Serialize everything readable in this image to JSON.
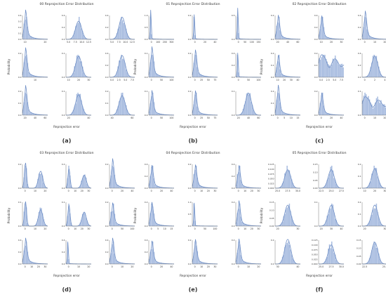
{
  "figure": {
    "accent_color": "#6f8fc6",
    "fill_color": "#a9bde0",
    "panels": [
      {
        "title": "00 Reprojection Error Distribution",
        "letter": "(a)",
        "ylabel": "Probability",
        "xlabel": "Reprojection error"
      },
      {
        "title": "01 Reprojection Error Distribution",
        "letter": "(b)",
        "ylabel": "Probability",
        "xlabel": "Reprojection error"
      },
      {
        "title": "02 Reprojection Error Distribution",
        "letter": "(c)",
        "ylabel": "Probability",
        "xlabel": "Reprojection error"
      },
      {
        "title": "03 Reprojection Error Distribution",
        "letter": "(d)",
        "ylabel": "Probability",
        "xlabel": "Reprojection error"
      },
      {
        "title": "04 Reprojection Error Distribution",
        "letter": "(e)",
        "ylabel": "Probability",
        "xlabel": "Reprojection error"
      },
      {
        "title": "05 Reprojection Error Distribution",
        "letter": "(f)",
        "ylabel": "Probability",
        "xlabel": "Reprojection error"
      }
    ]
  },
  "chart_data": [
    {
      "type": "histogram",
      "title": "00 Reprojection Error Distribution",
      "xlabel": "Reprojection error",
      "ylabel": "Probability",
      "grid": false,
      "subplots": [
        {
          "xticks": [
            "10",
            "20"
          ],
          "yticks": [
            "0.4",
            "0.3",
            "0.2",
            "0.1",
            "0.0"
          ],
          "shape": "skew"
        },
        {
          "xticks": [
            "5.0",
            "7.5",
            "10.0",
            "12.5"
          ],
          "yticks": [
            "0.4",
            "0.2",
            "0.0"
          ],
          "shape": "normal"
        },
        {
          "xticks": [
            "5.0",
            "7.5",
            "10.0",
            "12.5"
          ],
          "yticks": [
            "0.4",
            "0.2",
            "0.0"
          ],
          "shape": "normal"
        },
        {
          "xticks": [
            "10"
          ],
          "yticks": [
            "0.2",
            "0.0"
          ],
          "shape": "skew"
        },
        {
          "xticks": [
            "10",
            "20",
            "30"
          ],
          "yticks": [
            "0.1",
            "0.0"
          ],
          "shape": "normal"
        },
        {
          "xticks": [
            "0.0",
            "2.5",
            "5.0",
            "7.5"
          ],
          "yticks": [
            "0.4",
            "0.2",
            "0.0"
          ],
          "shape": "normal"
        },
        {
          "xticks": [
            "20",
            "40",
            "60"
          ],
          "yticks": [
            "0.2",
            "0.1",
            "0.0"
          ],
          "shape": "skew"
        },
        {
          "xticks": [
            "20",
            "40"
          ],
          "yticks": [
            "0.1",
            "0.0"
          ],
          "shape": "normal"
        },
        {
          "xticks": [
            "40",
            "60"
          ],
          "yticks": [
            "0.2",
            "0.1",
            "0.0"
          ],
          "shape": "normal"
        }
      ]
    },
    {
      "type": "histogram",
      "title": "01 Reprojection Error Distribution",
      "xlabel": "Reprojection error",
      "ylabel": "Probability",
      "grid": false,
      "subplots": [
        {
          "xticks": [
            "0",
            "100",
            "200",
            "300"
          ],
          "yticks": [
            "1.0",
            "0.5",
            "0.0"
          ],
          "shape": "spike"
        },
        {
          "xticks": [
            "0",
            "20",
            "40"
          ],
          "yticks": [
            "0.2",
            "0.0"
          ],
          "shape": "spike"
        },
        {
          "xticks": [
            "0",
            "50",
            "100",
            "150"
          ],
          "yticks": [
            "0.5",
            "0.0"
          ],
          "shape": "spike"
        },
        {
          "xticks": [
            "0",
            "50",
            "100"
          ],
          "yticks": [
            "0.1",
            "0.0"
          ],
          "shape": "skew"
        },
        {
          "xticks": [
            "0",
            "25",
            "50",
            "75"
          ],
          "yticks": [
            "0.2",
            "0.0"
          ],
          "shape": "skew"
        },
        {
          "xticks": [
            "0",
            "50",
            "100"
          ],
          "yticks": [
            "0.4",
            "0.2",
            "0.0"
          ],
          "shape": "spike"
        },
        {
          "xticks": [
            "0",
            "50",
            "100"
          ],
          "yticks": [
            "0.1",
            "0.0"
          ],
          "shape": "skew"
        },
        {
          "xticks": [
            "0",
            "25",
            "50",
            "75"
          ],
          "yticks": [
            "0.2",
            "0.0"
          ],
          "shape": "skew"
        },
        {
          "xticks": [
            "20",
            "40",
            "60"
          ],
          "yticks": [
            "0.1",
            "0.0"
          ],
          "shape": "normal"
        }
      ]
    },
    {
      "type": "histogram",
      "title": "02 Reprojection Error Distribution",
      "xlabel": "Reprojection error",
      "ylabel": "Probability",
      "grid": false,
      "subplots": [
        {
          "xticks": [
            "20",
            "40",
            "60"
          ],
          "yticks": [
            "0.2",
            "0.0"
          ],
          "shape": "skew"
        },
        {
          "xticks": [
            "10",
            "20",
            "30"
          ],
          "yticks": [
            "0.4",
            "0.2",
            "0.0"
          ],
          "shape": "skew"
        },
        {
          "xticks": [
            "0",
            "10",
            "20"
          ],
          "yticks": [
            "0.4",
            "0.2",
            "0.0"
          ],
          "shape": "skew"
        },
        {
          "xticks": [
            "10",
            "20",
            "30",
            "40"
          ],
          "yticks": [
            "0.2",
            "0.1",
            "0.0"
          ],
          "shape": "skew"
        },
        {
          "xticks": [
            "0.0",
            "2.5",
            "5.0",
            "7.5"
          ],
          "yticks": [
            "0.2",
            "0.1",
            "0.0"
          ],
          "shape": "multi"
        },
        {
          "xticks": [
            "0",
            "2",
            "4"
          ],
          "yticks": [
            "0.4",
            "0.2",
            "0.0"
          ],
          "shape": "normal"
        },
        {
          "xticks": [
            "0",
            "5",
            "10",
            "15"
          ],
          "yticks": [
            "0.2",
            "0.1",
            "0.0"
          ],
          "shape": "skew"
        },
        {
          "xticks": [
            "0",
            "20",
            "40"
          ],
          "yticks": [
            "0.2",
            "0.0"
          ],
          "shape": "skew"
        },
        {
          "xticks": [
            "0",
            "10",
            "20"
          ],
          "yticks": [
            "0.1",
            "0.0"
          ],
          "shape": "multi"
        }
      ]
    },
    {
      "type": "histogram",
      "title": "03 Reprojection Error Distribution",
      "xlabel": "Reprojection error",
      "ylabel": "Probability",
      "grid": false,
      "subplots": [
        {
          "xticks": [
            "0",
            "10",
            "20"
          ],
          "yticks": [
            "0.2",
            "0.0"
          ],
          "shape": "bimodal"
        },
        {
          "xticks": [
            "0",
            "10",
            "20",
            "30"
          ],
          "yticks": [
            "0.2",
            "0.0"
          ],
          "shape": "bimodal"
        },
        {
          "xticks": [
            "0",
            "20",
            "40"
          ],
          "yticks": [
            "0.2",
            "0.0"
          ],
          "shape": "skew"
        },
        {
          "xticks": [
            "0",
            "10",
            "20"
          ],
          "yticks": [
            "0.1",
            "0.0"
          ],
          "shape": "bimodal"
        },
        {
          "xticks": [
            "0",
            "10",
            "20",
            "30"
          ],
          "yticks": [
            "0.1",
            "0.0"
          ],
          "shape": "bimodal"
        },
        {
          "xticks": [
            "0",
            "50",
            "100"
          ],
          "yticks": [
            "0.2",
            "0.0"
          ],
          "shape": "skew"
        },
        {
          "xticks": [
            "0",
            "10",
            "20",
            "30"
          ],
          "yticks": [
            "0.4",
            "0.2",
            "0.0"
          ],
          "shape": "skew"
        },
        {
          "xticks": [
            "0",
            "10",
            "20"
          ],
          "yticks": [
            "0.4",
            "0.2",
            "0.0"
          ],
          "shape": "spike"
        },
        {
          "xticks": [
            "0",
            "10",
            "20"
          ],
          "yticks": [
            "0.4",
            "0.2",
            "0.0"
          ],
          "shape": "skew"
        }
      ]
    },
    {
      "type": "histogram",
      "title": "04 Reprojection Error Distribution",
      "xlabel": "Reprojection error",
      "ylabel": "Probability",
      "grid": false,
      "subplots": [
        {
          "xticks": [
            "0",
            "20",
            "40"
          ],
          "yticks": [
            "0.4",
            "0.2",
            "0.0"
          ],
          "shape": "skew"
        },
        {
          "xticks": [
            "0",
            "10",
            "20",
            "30"
          ],
          "yticks": [
            "0.2",
            "0.0"
          ],
          "shape": "skew"
        },
        {
          "xticks": [
            "0",
            "10",
            "20",
            "30"
          ],
          "yticks": [
            "0.4",
            "0.2",
            "0.0"
          ],
          "shape": "skew"
        },
        {
          "xticks": [
            "0",
            "5",
            "10",
            "15"
          ],
          "yticks": [
            "0.2",
            "0.0"
          ],
          "shape": "skew"
        },
        {
          "xticks": [
            "0",
            "50",
            "100"
          ],
          "yticks": [
            "1.0",
            "0.5",
            "0.0"
          ],
          "shape": "spike"
        },
        {
          "xticks": [
            "0",
            "10",
            "20",
            "30"
          ],
          "yticks": [
            "0.2",
            "0.0"
          ],
          "shape": "skew"
        },
        {
          "xticks": [
            "0",
            "20",
            "40"
          ],
          "yticks": [
            "0.4",
            "0.2",
            "0.0"
          ],
          "shape": "skew"
        },
        {
          "xticks": [
            "0",
            "10",
            "20",
            "30"
          ],
          "yticks": [
            "0.2",
            "0.0"
          ],
          "shape": "skew"
        },
        {
          "xticks": [
            "0",
            "10",
            "20"
          ],
          "yticks": [
            "0.2",
            "0.0"
          ],
          "shape": "skew"
        }
      ]
    },
    {
      "type": "histogram",
      "title": "05 Reprojection Error Distribution",
      "xlabel": "Reprojection error",
      "ylabel": "Probability",
      "grid": false,
      "subplots": [
        {
          "xticks": [
            "25.0",
            "27.5",
            "30.0"
          ],
          "yticks": [
            "0.125",
            "0.100",
            "0.075",
            "0.050",
            "0.025",
            "0.000"
          ],
          "shape": "normal"
        },
        {
          "xticks": [
            "22.5",
            "25.0",
            "27.5"
          ],
          "yticks": [
            "0.15",
            "0.10",
            "0.05",
            "0.00"
          ],
          "shape": "normal"
        },
        {
          "xticks": [
            "10",
            "20",
            "30"
          ],
          "yticks": [
            "0.2",
            "0.1",
            "0.0"
          ],
          "shape": "normal"
        },
        {
          "xticks": [
            "20",
            "30"
          ],
          "yticks": [
            "0.15",
            "0.10",
            "0.05",
            "0.00"
          ],
          "shape": "normal"
        },
        {
          "xticks": [
            "20",
            "30",
            "40"
          ],
          "yticks": [
            "0.1",
            "0.0"
          ],
          "shape": "normal"
        },
        {
          "xticks": [
            "20",
            "30"
          ],
          "yticks": [
            "0.2",
            "0.1",
            "0.0"
          ],
          "shape": "normal"
        },
        {
          "xticks": [
            "30",
            "40"
          ],
          "yticks": [
            "0.2",
            "0.0"
          ],
          "shape": "normal"
        },
        {
          "xticks": [
            "25.0",
            "27.5",
            "30.0"
          ],
          "yticks": [
            "0.125",
            "0.100",
            "0.075",
            "0.050",
            "0.025",
            "0.000"
          ],
          "shape": "normal"
        },
        {
          "xticks": [
            "22.5",
            "25.0"
          ],
          "yticks": [
            "0.15",
            "0.10",
            "0.05",
            "0.00"
          ],
          "shape": "normal"
        }
      ]
    }
  ]
}
